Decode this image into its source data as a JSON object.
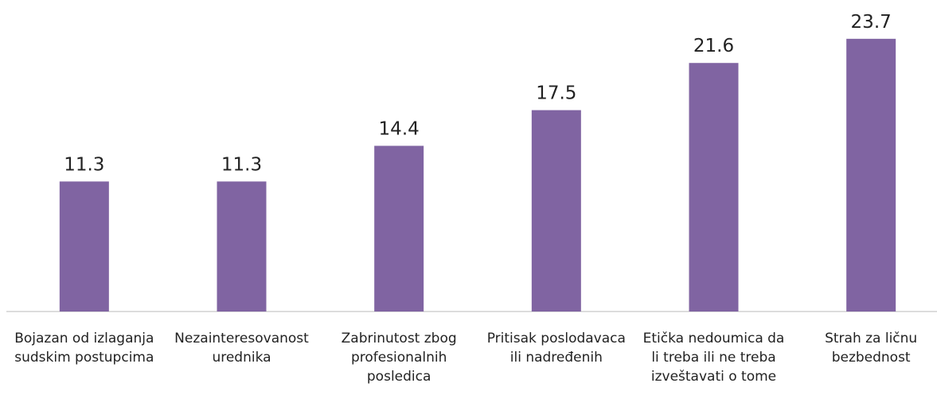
{
  "chart_data": {
    "type": "bar",
    "categories": [
      "Bojazan od izlaganja sudskim postupcima",
      "Nezainteresovanost urednika",
      "Zabrinutost zbog profesionalnih posledica",
      "Pritisak poslodavaca ili nadređenih",
      "Etička nedoumica da li treba ili ne treba izveštavati o tome",
      "Strah za ličnu bezbednost"
    ],
    "values": [
      11.3,
      11.3,
      14.4,
      17.5,
      21.6,
      23.7
    ],
    "color": "#8064a2",
    "ylim": [
      0,
      25
    ],
    "grid": false
  }
}
